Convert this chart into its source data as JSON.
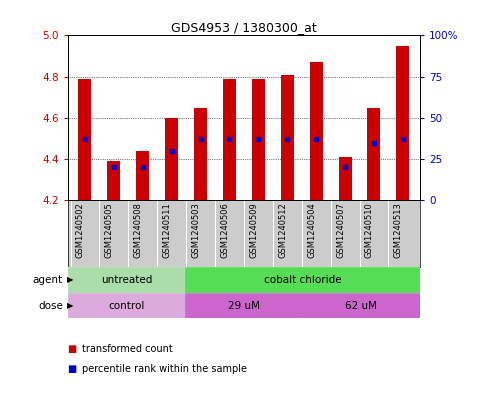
{
  "title": "GDS4953 / 1380300_at",
  "samples": [
    "GSM1240502",
    "GSM1240505",
    "GSM1240508",
    "GSM1240511",
    "GSM1240503",
    "GSM1240506",
    "GSM1240509",
    "GSM1240512",
    "GSM1240504",
    "GSM1240507",
    "GSM1240510",
    "GSM1240513"
  ],
  "transformed_counts": [
    4.79,
    4.39,
    4.44,
    4.6,
    4.65,
    4.79,
    4.79,
    4.81,
    4.87,
    4.41,
    4.65,
    4.95
  ],
  "percentile_ranks": [
    37,
    20,
    20,
    30,
    37,
    37,
    37,
    37,
    37,
    20,
    35,
    37
  ],
  "bar_bottom": 4.2,
  "ylim_left": [
    4.2,
    5.0
  ],
  "ylim_right": [
    0,
    100
  ],
  "yticks_left": [
    4.2,
    4.4,
    4.6,
    4.8,
    5.0
  ],
  "yticks_right": [
    0,
    25,
    50,
    75,
    100
  ],
  "ytick_labels_right": [
    "0",
    "25",
    "50",
    "75",
    "100%"
  ],
  "bar_color": "#cc0000",
  "dot_color": "#0000cc",
  "agent_groups": [
    {
      "label": "untreated",
      "start": 0,
      "end": 4,
      "color": "#aaddaa"
    },
    {
      "label": "cobalt chloride",
      "start": 4,
      "end": 12,
      "color": "#55dd55"
    }
  ],
  "dose_groups": [
    {
      "label": "control",
      "start": 0,
      "end": 4,
      "color": "#ddaadd"
    },
    {
      "label": "29 uM",
      "start": 4,
      "end": 8,
      "color": "#cc66cc"
    },
    {
      "label": "62 uM",
      "start": 8,
      "end": 12,
      "color": "#cc66cc"
    }
  ],
  "grid_color": "#000000",
  "bg_color": "#ffffff",
  "plot_bg": "#ffffff",
  "label_color_left": "#cc0000",
  "label_color_right": "#0000cc",
  "agent_label": "agent",
  "dose_label": "dose",
  "legend_items": [
    {
      "color": "#cc0000",
      "label": "transformed count"
    },
    {
      "color": "#0000cc",
      "label": "percentile rank within the sample"
    }
  ],
  "sample_bg": "#cccccc"
}
